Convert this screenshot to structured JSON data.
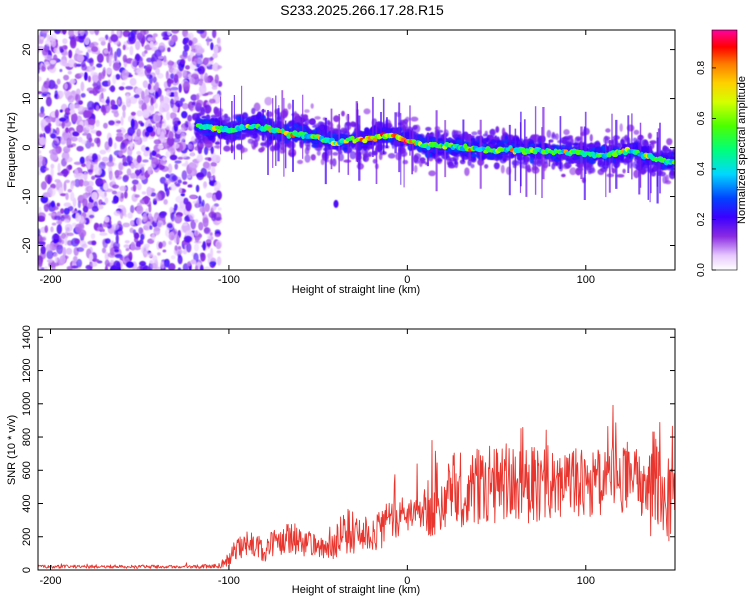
{
  "title": "S233.2025.266.17.28.R15",
  "colors": {
    "snr_line": "#e8352e",
    "ridge": "#ff2b2b",
    "noise_dark": "#6a00e0",
    "noise_light": "#d9b8ff"
  },
  "chart_data": [
    {
      "type": "heatmap",
      "title": "",
      "xlabel": "Height of straight line (km)",
      "ylabel": "Frequency (Hz)",
      "xlim": [
        -207,
        150
      ],
      "ylim": [
        -25,
        24
      ],
      "xticks": [
        -200,
        -100,
        0,
        100
      ],
      "yticks": [
        -20,
        -10,
        0,
        10,
        20
      ],
      "colorbar": {
        "label": "Normalized spectral amplitude",
        "range": [
          0.0,
          0.95
        ],
        "ticks": [
          0.0,
          0.2,
          0.4,
          0.6,
          0.8
        ]
      },
      "signal_ridge": {
        "x": [
          -118,
          -100,
          -85,
          -70,
          -55,
          -40,
          -20,
          -10,
          0,
          10,
          30,
          50,
          70,
          90,
          110,
          125,
          140,
          150
        ],
        "y": [
          4.5,
          3.5,
          4.5,
          3.0,
          2.5,
          1.0,
          2.0,
          2.5,
          1.5,
          0.5,
          0.0,
          -0.5,
          -0.5,
          -1.0,
          -1.5,
          -0.5,
          -2.5,
          -3.0
        ]
      },
      "noise_region_x": [
        -207,
        -105
      ]
    },
    {
      "type": "line",
      "title": "",
      "xlabel": "Height of straight line (km)",
      "ylabel": "SNR (10 * v/v)",
      "xlim": [
        -207,
        150
      ],
      "ylim": [
        0,
        1450
      ],
      "xticks": [
        -200,
        -100,
        0,
        100
      ],
      "yticks": [
        0,
        200,
        400,
        600,
        800,
        1000,
        1200,
        1400
      ],
      "series": [
        {
          "name": "SNR",
          "x": [
            -207,
            -180,
            -150,
            -120,
            -105,
            -100,
            -95,
            -90,
            -85,
            -80,
            -75,
            -70,
            -65,
            -60,
            -55,
            -50,
            -45,
            -40,
            -35,
            -30,
            -25,
            -20,
            -15,
            -10,
            -5,
            0,
            5,
            10,
            15,
            20,
            25,
            30,
            40,
            50,
            60,
            70,
            80,
            90,
            100,
            110,
            120,
            130,
            135,
            140,
            145,
            150
          ],
          "mean": [
            20,
            20,
            20,
            20,
            25,
            70,
            130,
            160,
            150,
            120,
            160,
            180,
            200,
            190,
            160,
            120,
            130,
            170,
            240,
            230,
            200,
            230,
            260,
            280,
            300,
            330,
            340,
            360,
            420,
            470,
            480,
            480,
            500,
            520,
            520,
            510,
            530,
            530,
            530,
            540,
            540,
            530,
            500,
            560,
            500,
            480
          ],
          "spread": [
            10,
            10,
            10,
            10,
            15,
            50,
            70,
            80,
            70,
            70,
            80,
            90,
            100,
            100,
            90,
            70,
            70,
            100,
            140,
            130,
            110,
            120,
            130,
            130,
            110,
            100,
            110,
            130,
            260,
            230,
            240,
            230,
            230,
            240,
            250,
            230,
            220,
            210,
            220,
            210,
            210,
            230,
            280,
            400,
            350,
            300
          ]
        }
      ]
    }
  ]
}
